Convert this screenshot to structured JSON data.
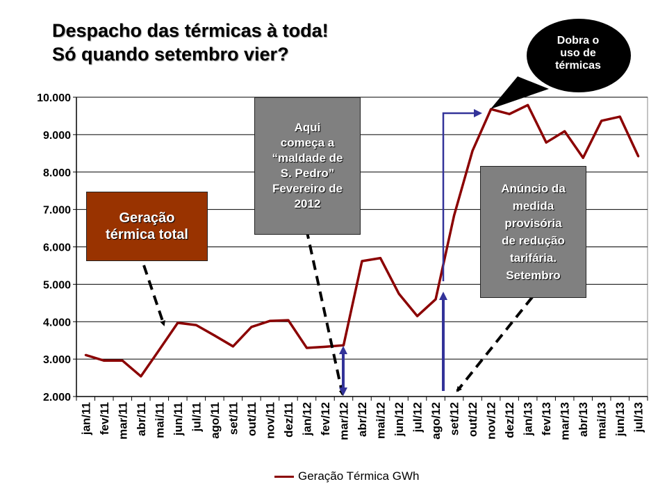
{
  "title": {
    "line1": "Despacho das térmicas à toda!",
    "line2": "Só quando setembro vier?"
  },
  "annotations": {
    "geracao": [
      "Geração",
      "térmica total"
    ],
    "sao_pedro": [
      "Aqui",
      "começa a",
      "“maldade de",
      "S. Pedro”",
      "Fevereiro de",
      "2012"
    ],
    "anuncio": [
      "Anúncio da",
      "medida",
      "provisória",
      "de redução",
      "tarifária.",
      "Setembro"
    ],
    "bubble": [
      "Dobra o",
      "uso de",
      "térmicas"
    ]
  },
  "colors": {
    "series": "#8B0000",
    "geracao_box": "#993300",
    "gray_box": "#808080",
    "blue_arrow": "#333399"
  },
  "chart_data": {
    "type": "line",
    "title": "",
    "xlabel": "",
    "ylabel": "",
    "ylim": [
      2000,
      10000
    ],
    "yticks": [
      2000,
      3000,
      4000,
      5000,
      6000,
      7000,
      8000,
      9000,
      10000
    ],
    "ytick_labels": [
      "2.000",
      "3.000",
      "4.000",
      "5.000",
      "6.000",
      "7.000",
      "8.000",
      "9.000",
      "10.000"
    ],
    "grid": true,
    "legend_position": "bottom",
    "categories": [
      "jan/11",
      "fev/11",
      "mar/11",
      "abr/11",
      "mai/11",
      "jun/11",
      "jul/11",
      "ago/11",
      "set/11",
      "out/11",
      "nov/11",
      "dez/11",
      "jan/12",
      "fev/12",
      "mar/12",
      "abr/12",
      "mai/12",
      "jun/12",
      "jul/12",
      "ago/12",
      "set/12",
      "out/12",
      "nov/12",
      "dez/12",
      "jan/13",
      "fev/13",
      "mar/13",
      "abr/13",
      "mai/13",
      "jun/13",
      "jul/13"
    ],
    "series": [
      {
        "name": "Geração Térmica GWh",
        "values": [
          3110,
          2960,
          2960,
          2540,
          3250,
          3970,
          3910,
          3630,
          3340,
          3860,
          4020,
          4040,
          3300,
          3330,
          3370,
          5620,
          5700,
          4750,
          4150,
          4600,
          6840,
          8570,
          9680,
          9550,
          9790,
          8790,
          9090,
          8380,
          9370,
          9480,
          8420
        ]
      }
    ]
  }
}
